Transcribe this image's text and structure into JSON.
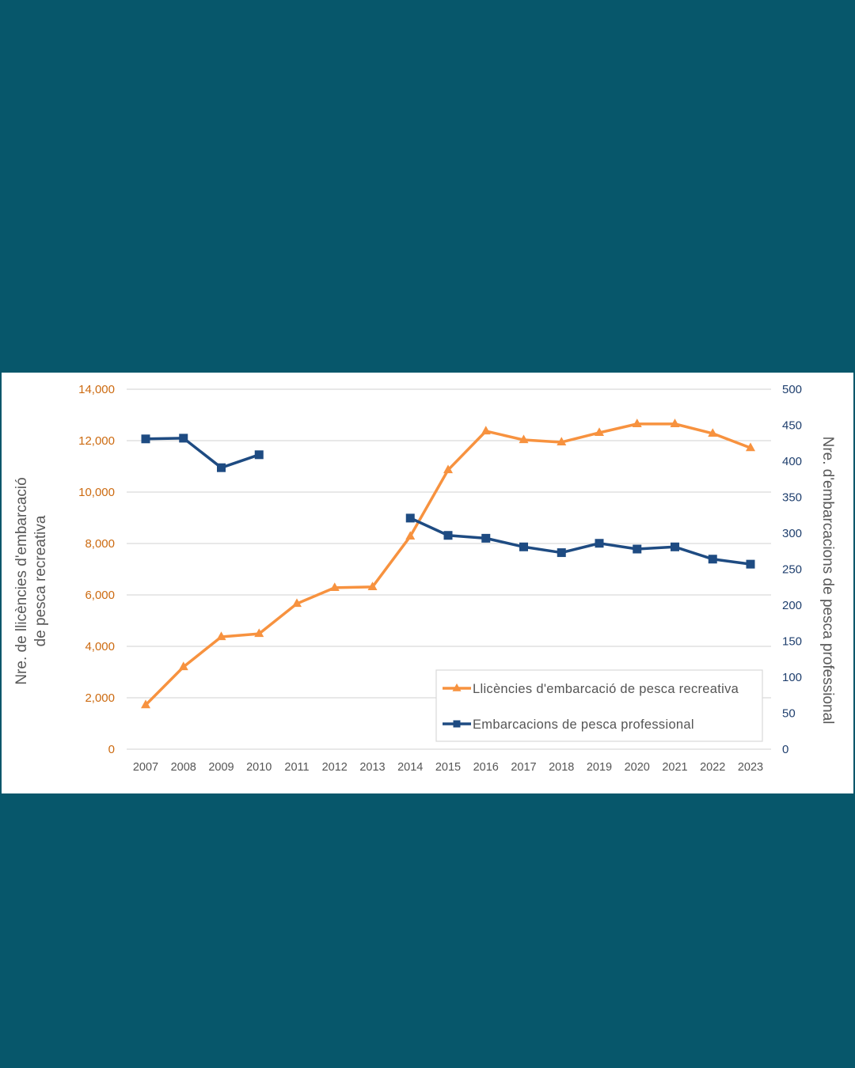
{
  "chart_data": {
    "type": "line",
    "title": "",
    "categories": [
      "2007",
      "2008",
      "2009",
      "2010",
      "2011",
      "2012",
      "2013",
      "2014",
      "2015",
      "2016",
      "2017",
      "2018",
      "2019",
      "2020",
      "2021",
      "2022",
      "2023"
    ],
    "y_left": {
      "label_lines": [
        "Nre. de llicències d'embarcació",
        "de pesca recreativa"
      ],
      "range": [
        0,
        14000
      ],
      "ticks": [
        0,
        2000,
        4000,
        6000,
        8000,
        10000,
        12000,
        14000
      ],
      "tick_labels": [
        "0",
        "2,000",
        "4,000",
        "6,000",
        "8,000",
        "10,000",
        "12,000",
        "14,000"
      ],
      "color": "#cc6a10"
    },
    "y_right": {
      "label": "Nre. d'embarcacions de pesca professional",
      "range": [
        0,
        500
      ],
      "ticks": [
        0,
        50,
        100,
        150,
        200,
        250,
        300,
        350,
        400,
        450,
        500
      ],
      "tick_labels": [
        "0",
        "50",
        "100",
        "150",
        "200",
        "250",
        "300",
        "350",
        "400",
        "450",
        "500"
      ],
      "color": "#1f3f6e"
    },
    "grid": true,
    "legend_position": "bottom-right",
    "series": [
      {
        "name": "Llicències d'embarcació de pesca recreativa",
        "axis": "left",
        "color": "#f7923f",
        "marker": "triangle",
        "values": [
          1720,
          3200,
          4370,
          4490,
          5660,
          6280,
          6310,
          8280,
          10860,
          12370,
          12030,
          11940,
          12310,
          12650,
          12650,
          12280,
          11720
        ]
      },
      {
        "name": "Embarcacions de pesca professional",
        "axis": "right",
        "color": "#1e4b82",
        "marker": "square",
        "values": [
          431,
          432,
          391,
          409,
          null,
          null,
          null,
          321,
          297,
          293,
          281,
          273,
          286,
          278,
          281,
          264,
          257
        ]
      }
    ]
  },
  "colors": {
    "page_background": "#07576b",
    "panel_background": "#ffffff",
    "gridline": "#d9d9d9"
  }
}
